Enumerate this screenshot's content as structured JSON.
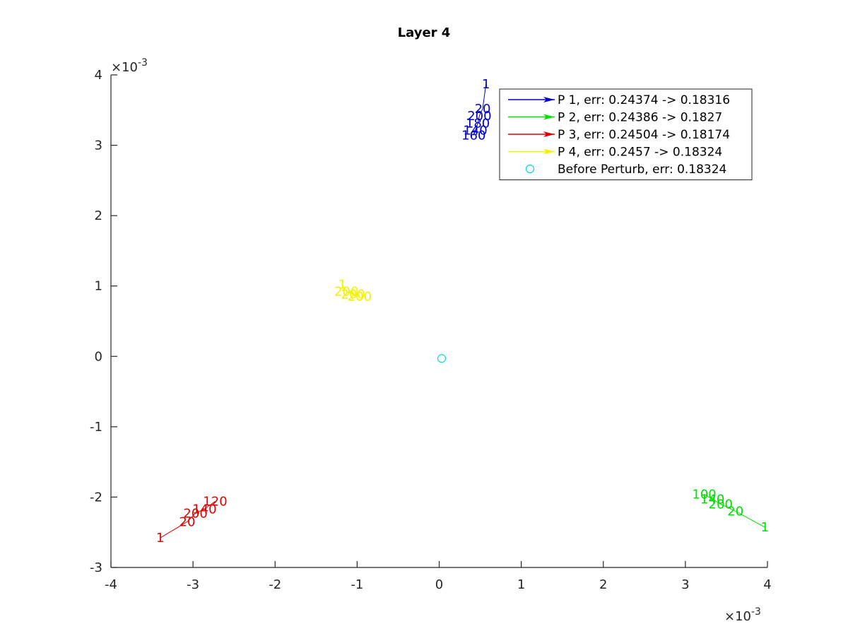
{
  "chart_data": {
    "type": "scatter",
    "title": "Layer 4",
    "xlabel": "",
    "ylabel": "",
    "x_exponent": "×10-3",
    "y_exponent": "×10-3",
    "xlim": [
      -4,
      4
    ],
    "ylim": [
      -3,
      4
    ],
    "x_ticks": [
      -4,
      -3,
      -2,
      -1,
      0,
      1,
      2,
      3,
      4
    ],
    "y_ticks": [
      -3,
      -2,
      -1,
      0,
      1,
      2,
      3,
      4
    ],
    "x_tick_labels": [
      "-4",
      "-3",
      "-2",
      "-1",
      "0",
      "1",
      "2",
      "3",
      "4"
    ],
    "y_tick_labels": [
      "-3",
      "-2",
      "-1",
      "0",
      "1",
      "2",
      "3",
      "4"
    ],
    "grid": false,
    "legend_position": "top-right",
    "series": [
      {
        "name": "P 1, err: 0.24374 -> 0.18316",
        "color": "#0000cc",
        "points": [
          {
            "x": 0.57,
            "y": 3.87,
            "label": "1"
          },
          {
            "x": 0.53,
            "y": 3.52,
            "label": "20"
          },
          {
            "x": 0.49,
            "y": 3.42,
            "label": "200"
          },
          {
            "x": 0.47,
            "y": 3.31,
            "label": "180"
          },
          {
            "x": 0.44,
            "y": 3.21,
            "label": "140"
          },
          {
            "x": 0.42,
            "y": 3.14,
            "label": "160"
          }
        ]
      },
      {
        "name": "P 2, err: 0.24386 -> 0.1827",
        "color": "#00e000",
        "points": [
          {
            "x": 3.97,
            "y": -2.43,
            "label": "1"
          },
          {
            "x": 3.61,
            "y": -2.2,
            "label": "20"
          },
          {
            "x": 3.43,
            "y": -2.1,
            "label": "200"
          },
          {
            "x": 3.33,
            "y": -2.03,
            "label": "140"
          },
          {
            "x": 3.23,
            "y": -1.96,
            "label": "100"
          }
        ]
      },
      {
        "name": "P 3, err: 0.24504 -> 0.18174",
        "color": "#e00000",
        "points": [
          {
            "x": -3.4,
            "y": -2.58,
            "label": "1"
          },
          {
            "x": -3.07,
            "y": -2.35,
            "label": "20"
          },
          {
            "x": -2.97,
            "y": -2.23,
            "label": "200"
          },
          {
            "x": -2.86,
            "y": -2.17,
            "label": "140"
          },
          {
            "x": -2.73,
            "y": -2.06,
            "label": "120"
          }
        ]
      },
      {
        "name": "P 4, err: 0.2457 -> 0.18324",
        "color": "#f2f200",
        "points": [
          {
            "x": -1.18,
            "y": 1.02,
            "label": "1"
          },
          {
            "x": -1.13,
            "y": 0.92,
            "label": "200"
          },
          {
            "x": -1.05,
            "y": 0.88,
            "label": "200"
          },
          {
            "x": -0.97,
            "y": 0.85,
            "label": "200"
          }
        ]
      },
      {
        "name": "Before Perturb, err: 0.18324",
        "color": "#00dddd",
        "marker": "circle",
        "points": [
          {
            "x": 0.03,
            "y": -0.03
          }
        ]
      }
    ]
  }
}
